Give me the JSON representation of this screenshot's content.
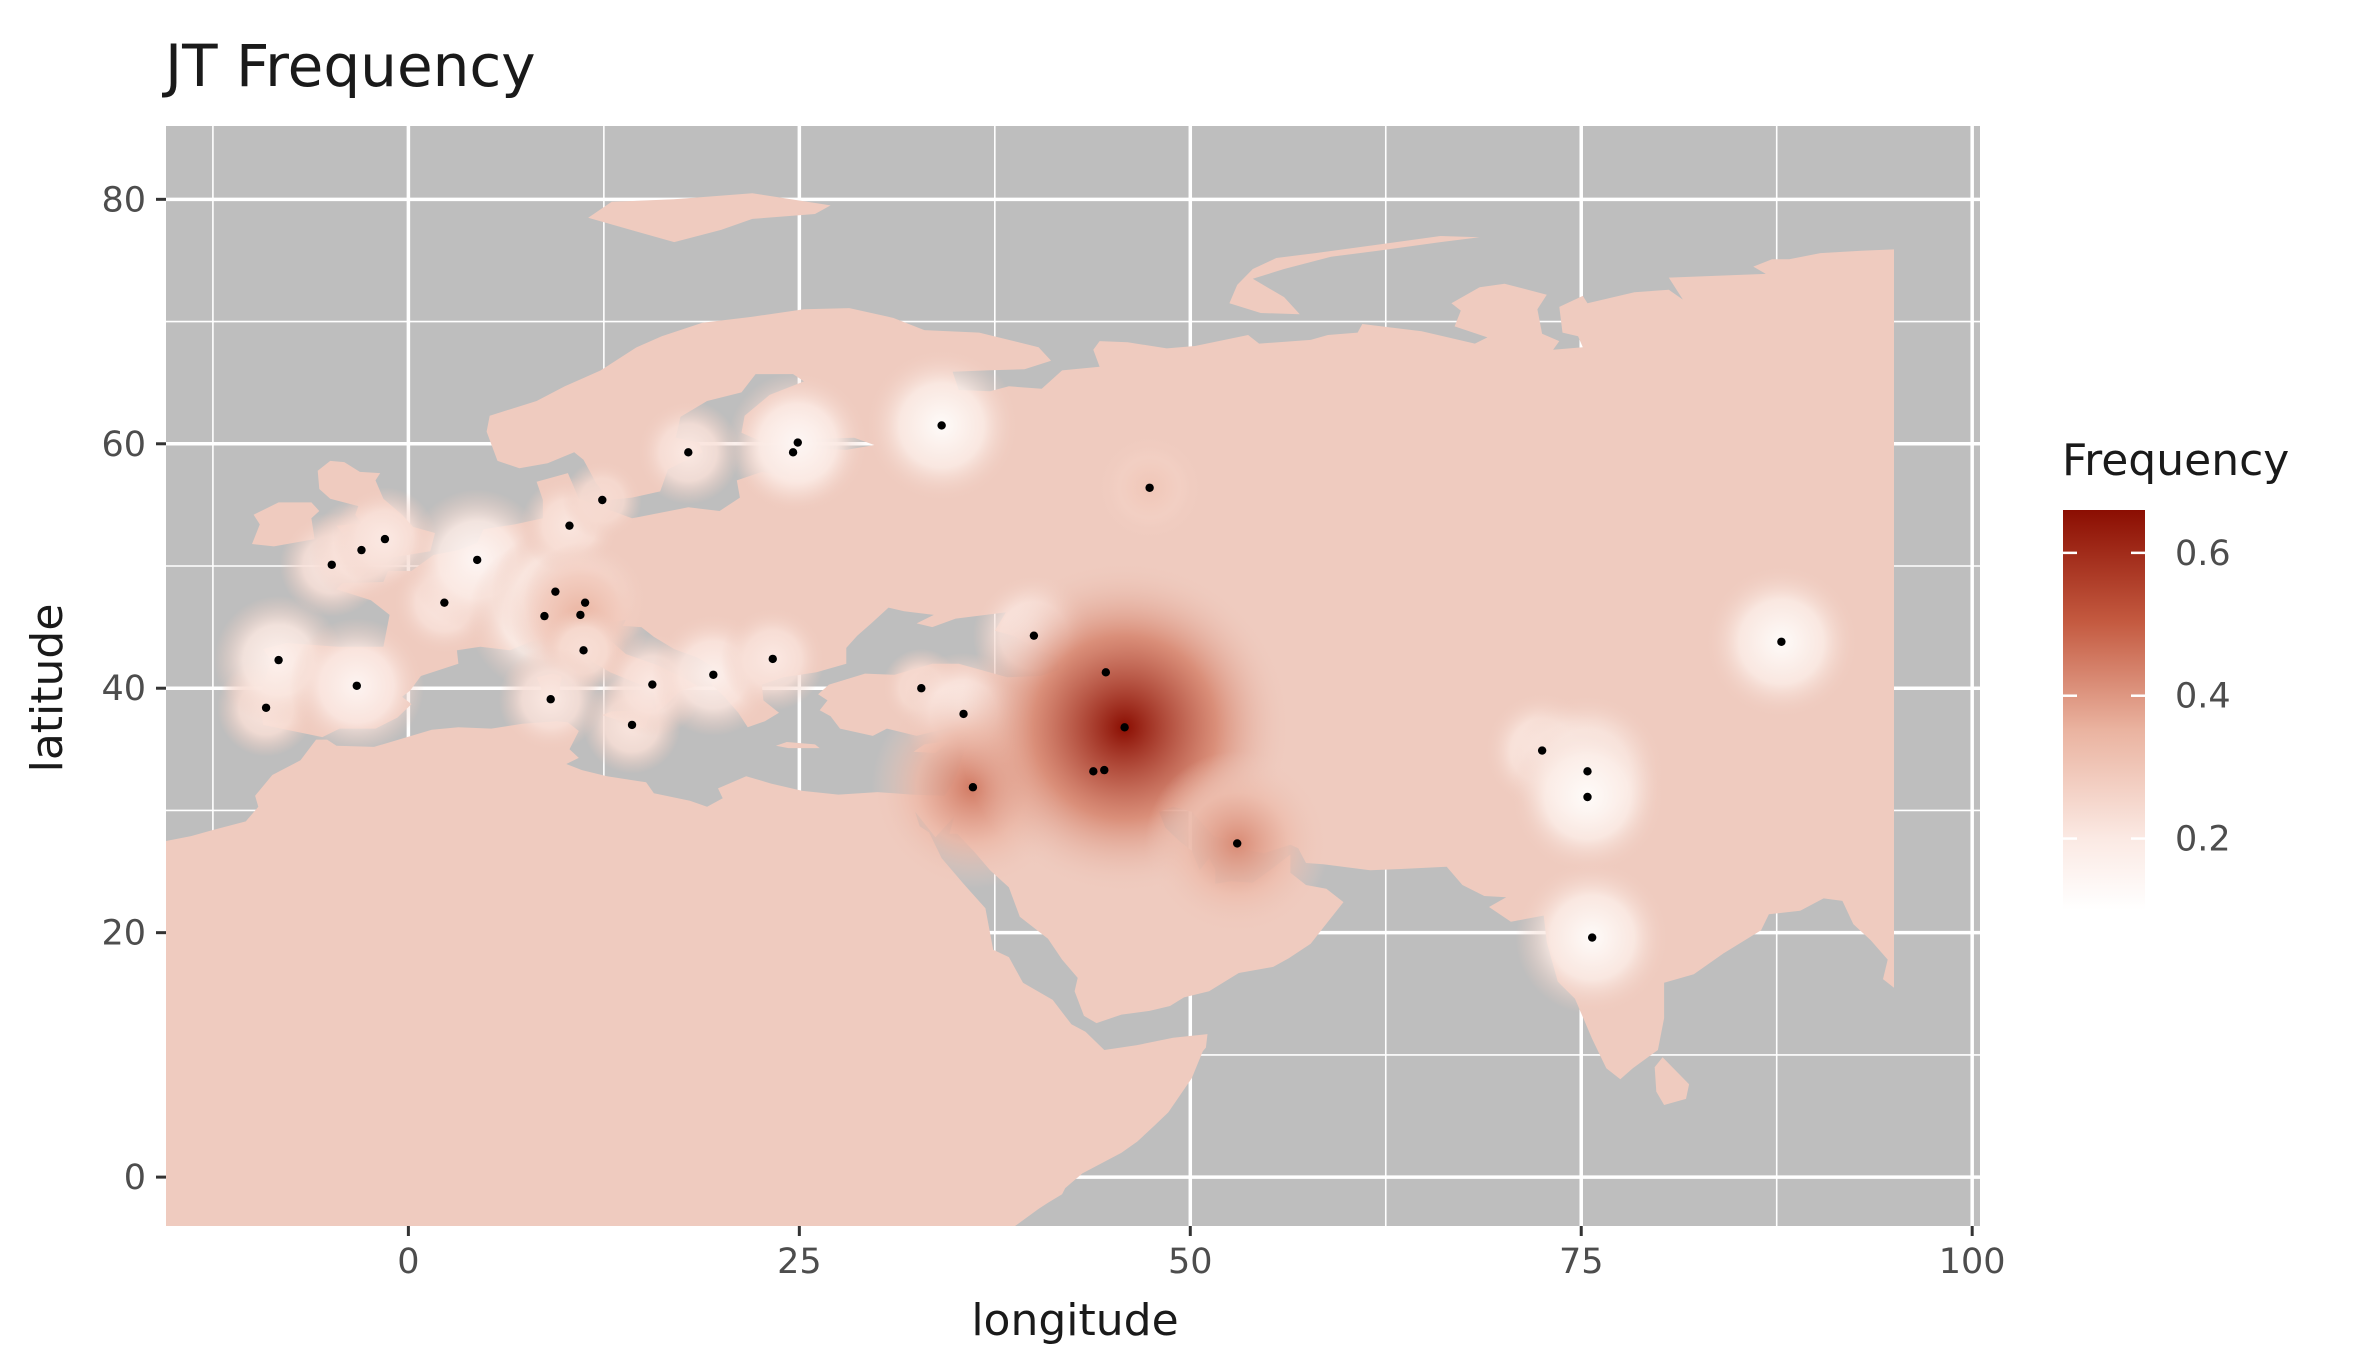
{
  "chart_data": {
    "type": "map",
    "title": "JT Frequency",
    "xlabel": "longitude",
    "ylabel": "latitude",
    "xlim": [
      -15.5,
      100.5
    ],
    "ylim": [
      -4,
      86
    ],
    "x_ticks": [
      0,
      25,
      50,
      75,
      100
    ],
    "x_tick_labels": [
      "0",
      "25",
      "50",
      "75",
      "100"
    ],
    "y_ticks": [
      0,
      20,
      40,
      60,
      80
    ],
    "y_tick_labels": [
      "0",
      "20",
      "40",
      "60",
      "80"
    ],
    "grid": true,
    "panel_background": "#bebebe",
    "land_color": "#efcbbf",
    "legend": {
      "title": "Frequency",
      "position": "right",
      "range": [
        0.1,
        0.66
      ],
      "breaks": [
        0.6,
        0.4,
        0.2
      ],
      "break_labels": [
        "0.6",
        "0.4",
        "0.2"
      ],
      "colors": {
        "low": "#ffffff",
        "mid": "#e3a58f",
        "high": "#8b0e02"
      }
    },
    "points": [
      {
        "lon": -9.1,
        "lat": 38.4,
        "freq": 0.21
      },
      {
        "lon": -8.3,
        "lat": 42.3,
        "freq": 0.16
      },
      {
        "lon": -4.9,
        "lat": 50.1,
        "freq": 0.2
      },
      {
        "lon": -3.0,
        "lat": 51.3,
        "freq": 0.2
      },
      {
        "lon": -1.5,
        "lat": 52.2,
        "freq": 0.2
      },
      {
        "lon": -3.3,
        "lat": 40.2,
        "freq": 0.15
      },
      {
        "lon": 2.3,
        "lat": 47.0,
        "freq": 0.2
      },
      {
        "lon": 4.4,
        "lat": 50.5,
        "freq": 0.14
      },
      {
        "lon": 8.7,
        "lat": 45.9,
        "freq": 0.12
      },
      {
        "lon": 9.4,
        "lat": 47.9,
        "freq": 0.16
      },
      {
        "lon": 10.3,
        "lat": 53.3,
        "freq": 0.21
      },
      {
        "lon": 11.3,
        "lat": 47.0,
        "freq": 0.17
      },
      {
        "lon": 11.0,
        "lat": 46.0,
        "freq": 0.35
      },
      {
        "lon": 11.2,
        "lat": 43.1,
        "freq": 0.23
      },
      {
        "lon": 12.4,
        "lat": 55.4,
        "freq": 0.24
      },
      {
        "lon": 9.1,
        "lat": 39.1,
        "freq": 0.2
      },
      {
        "lon": 14.3,
        "lat": 37.0,
        "freq": 0.21
      },
      {
        "lon": 15.6,
        "lat": 40.3,
        "freq": 0.2
      },
      {
        "lon": 17.9,
        "lat": 59.3,
        "freq": 0.2
      },
      {
        "lon": 19.5,
        "lat": 41.1,
        "freq": 0.17
      },
      {
        "lon": 23.3,
        "lat": 42.4,
        "freq": 0.2
      },
      {
        "lon": 24.6,
        "lat": 59.3,
        "freq": 0.18
      },
      {
        "lon": 24.9,
        "lat": 60.1,
        "freq": 0.14
      },
      {
        "lon": 32.8,
        "lat": 40.0,
        "freq": 0.24
      },
      {
        "lon": 34.1,
        "lat": 61.5,
        "freq": 0.12
      },
      {
        "lon": 35.5,
        "lat": 37.9,
        "freq": 0.17
      },
      {
        "lon": 36.1,
        "lat": 31.9,
        "freq": 0.45
      },
      {
        "lon": 40.0,
        "lat": 44.3,
        "freq": 0.17
      },
      {
        "lon": 44.6,
        "lat": 41.3,
        "freq": 0.26
      },
      {
        "lon": 43.8,
        "lat": 33.2,
        "freq": 0.3
      },
      {
        "lon": 44.5,
        "lat": 33.3,
        "freq": 0.3
      },
      {
        "lon": 45.8,
        "lat": 36.8,
        "freq": 0.66
      },
      {
        "lon": 47.4,
        "lat": 56.4,
        "freq": 0.3
      },
      {
        "lon": 53.0,
        "lat": 27.3,
        "freq": 0.42
      },
      {
        "lon": 72.5,
        "lat": 34.9,
        "freq": 0.18
      },
      {
        "lon": 75.4,
        "lat": 33.2,
        "freq": 0.12
      },
      {
        "lon": 75.4,
        "lat": 31.1,
        "freq": 0.12
      },
      {
        "lon": 75.7,
        "lat": 19.6,
        "freq": 0.12
      },
      {
        "lon": 87.8,
        "lat": 43.8,
        "freq": 0.12
      }
    ]
  }
}
